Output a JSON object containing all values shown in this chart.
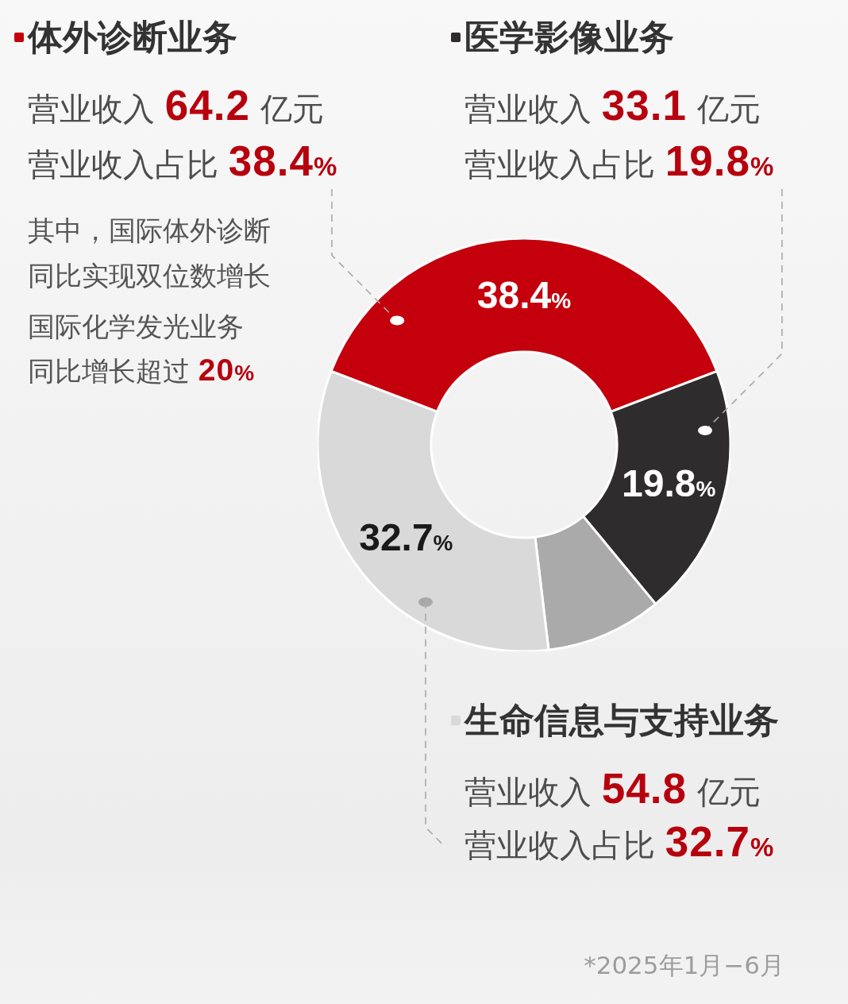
{
  "chart_data": {
    "type": "donut",
    "categories": [
      "体外诊断业务",
      "医学影像业务",
      null,
      "生命信息与支持业务"
    ],
    "values": [
      38.4,
      19.8,
      9.1,
      32.7
    ],
    "colors": [
      "#c4000d",
      "#2f2c2e",
      "#aaaaaa",
      "#d9d9d9"
    ],
    "value_labels": [
      "38.4%",
      "19.8%",
      null,
      "32.7%"
    ],
    "legend": "top",
    "annotations": [
      "营业收入 64.2 亿元",
      "营业收入占比 38.4%",
      "其中，国际体外诊断",
      "同比实现双位数增长",
      "国际化学发光业务",
      "同比增长超过 20%",
      "营业收入 33.1 亿元",
      "营业收入占比 19.8%",
      "营业收入 54.8 亿元",
      "营业收入占比 32.7%",
      "*2025年1月−6月"
    ]
  }
}
